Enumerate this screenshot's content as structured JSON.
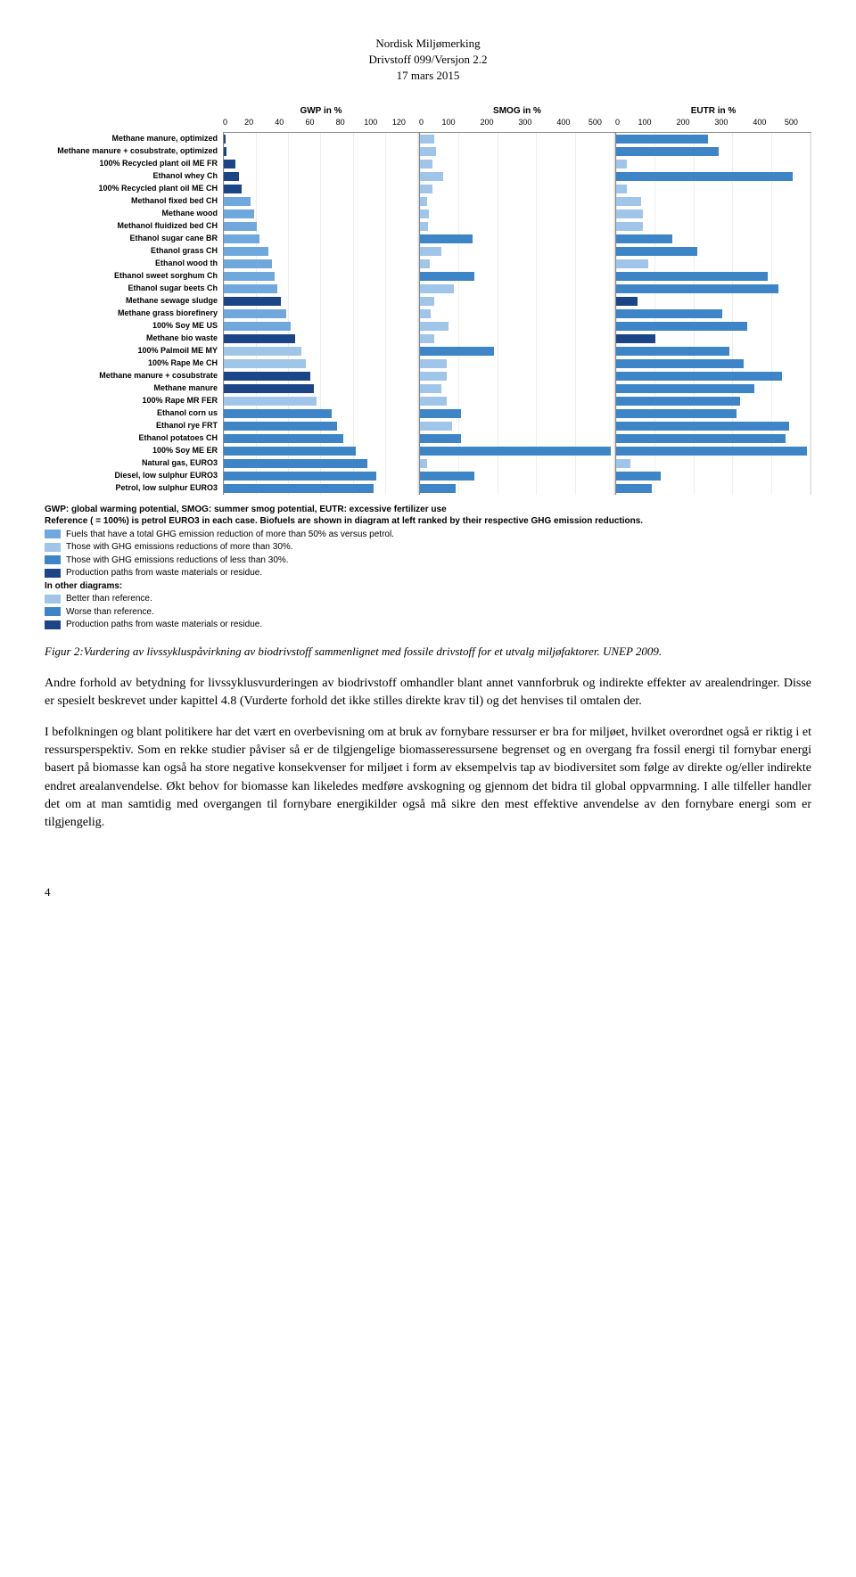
{
  "doc_header": {
    "line1": "Nordisk Miljømerking",
    "line2": "Drivstoff 099/Versjon 2.2",
    "line3": "17 mars 2015"
  },
  "chart": {
    "panels": [
      {
        "title": "GWP in %",
        "max": 130,
        "ticks": [
          "0",
          "20",
          "40",
          "60",
          "80",
          "100",
          "120"
        ]
      },
      {
        "title": "SMOG in %",
        "max": 550,
        "ticks": [
          "0",
          "100",
          "200",
          "300",
          "400",
          "500"
        ]
      },
      {
        "title": "EUTR in %",
        "max": 550,
        "ticks": [
          "0",
          "100",
          "200",
          "300",
          "400",
          "500"
        ]
      }
    ],
    "colors": {
      "c50": "#6fa8dc",
      "c30": "#9fc5e8",
      "c30b": "#3d85c6",
      "waste": "#1c4587",
      "better": "#9fc5e8",
      "worse": "#3d85c6"
    },
    "rows": [
      {
        "label": "Methane manure, optimized",
        "gwp": {
          "v": 1,
          "c": "waste"
        },
        "smog": {
          "v": 40,
          "c": "better"
        },
        "eutr": {
          "v": 260,
          "c": "worse"
        }
      },
      {
        "label": "Methane manure + cosubstrate, optimized",
        "gwp": {
          "v": 2,
          "c": "waste"
        },
        "smog": {
          "v": 45,
          "c": "better"
        },
        "eutr": {
          "v": 290,
          "c": "worse"
        }
      },
      {
        "label": "100% Recycled plant oil ME FR",
        "gwp": {
          "v": 8,
          "c": "waste"
        },
        "smog": {
          "v": 35,
          "c": "better"
        },
        "eutr": {
          "v": 30,
          "c": "better"
        }
      },
      {
        "label": "Ethanol whey Ch",
        "gwp": {
          "v": 10,
          "c": "waste"
        },
        "smog": {
          "v": 65,
          "c": "better"
        },
        "eutr": {
          "v": 500,
          "c": "worse"
        }
      },
      {
        "label": "100% Recycled plant oil ME CH",
        "gwp": {
          "v": 12,
          "c": "waste"
        },
        "smog": {
          "v": 35,
          "c": "better"
        },
        "eutr": {
          "v": 30,
          "c": "better"
        }
      },
      {
        "label": "Methanol fixed bed CH",
        "gwp": {
          "v": 18,
          "c": "c50"
        },
        "smog": {
          "v": 20,
          "c": "better"
        },
        "eutr": {
          "v": 70,
          "c": "better"
        }
      },
      {
        "label": "Methane wood",
        "gwp": {
          "v": 20,
          "c": "c50"
        },
        "smog": {
          "v": 25,
          "c": "better"
        },
        "eutr": {
          "v": 75,
          "c": "better"
        }
      },
      {
        "label": "Methanol fluidized bed CH",
        "gwp": {
          "v": 22,
          "c": "c50"
        },
        "smog": {
          "v": 22,
          "c": "better"
        },
        "eutr": {
          "v": 75,
          "c": "better"
        }
      },
      {
        "label": "Ethanol sugar cane BR",
        "gwp": {
          "v": 24,
          "c": "c50"
        },
        "smog": {
          "v": 150,
          "c": "worse"
        },
        "eutr": {
          "v": 160,
          "c": "worse"
        }
      },
      {
        "label": "Ethanol grass CH",
        "gwp": {
          "v": 30,
          "c": "c50"
        },
        "smog": {
          "v": 60,
          "c": "better"
        },
        "eutr": {
          "v": 230,
          "c": "worse"
        }
      },
      {
        "label": "Ethanol wood th",
        "gwp": {
          "v": 32,
          "c": "c50"
        },
        "smog": {
          "v": 28,
          "c": "better"
        },
        "eutr": {
          "v": 90,
          "c": "better"
        }
      },
      {
        "label": "Ethanol sweet sorghum Ch",
        "gwp": {
          "v": 34,
          "c": "c50"
        },
        "smog": {
          "v": 155,
          "c": "worse"
        },
        "eutr": {
          "v": 430,
          "c": "worse"
        }
      },
      {
        "label": "Ethanol sugar beets Ch",
        "gwp": {
          "v": 36,
          "c": "c50"
        },
        "smog": {
          "v": 95,
          "c": "better"
        },
        "eutr": {
          "v": 460,
          "c": "worse"
        }
      },
      {
        "label": "Methane sewage sludge",
        "gwp": {
          "v": 38,
          "c": "waste"
        },
        "smog": {
          "v": 40,
          "c": "better"
        },
        "eutr": {
          "v": 60,
          "c": "waste"
        }
      },
      {
        "label": "Methane grass biorefinery",
        "gwp": {
          "v": 42,
          "c": "c50"
        },
        "smog": {
          "v": 30,
          "c": "better"
        },
        "eutr": {
          "v": 300,
          "c": "worse"
        }
      },
      {
        "label": "100% Soy ME US",
        "gwp": {
          "v": 45,
          "c": "c50"
        },
        "smog": {
          "v": 80,
          "c": "better"
        },
        "eutr": {
          "v": 370,
          "c": "worse"
        }
      },
      {
        "label": "Methane bio waste",
        "gwp": {
          "v": 48,
          "c": "waste"
        },
        "smog": {
          "v": 40,
          "c": "better"
        },
        "eutr": {
          "v": 110,
          "c": "waste"
        }
      },
      {
        "label": "100% Palmoil ME MY",
        "gwp": {
          "v": 52,
          "c": "c30"
        },
        "smog": {
          "v": 210,
          "c": "worse"
        },
        "eutr": {
          "v": 320,
          "c": "worse"
        }
      },
      {
        "label": "100% Rape Me CH",
        "gwp": {
          "v": 55,
          "c": "c30"
        },
        "smog": {
          "v": 75,
          "c": "better"
        },
        "eutr": {
          "v": 360,
          "c": "worse"
        }
      },
      {
        "label": "Methane manure + cosubstrate",
        "gwp": {
          "v": 58,
          "c": "waste"
        },
        "smog": {
          "v": 75,
          "c": "better"
        },
        "eutr": {
          "v": 470,
          "c": "worse"
        }
      },
      {
        "label": "Methane manure",
        "gwp": {
          "v": 60,
          "c": "waste"
        },
        "smog": {
          "v": 60,
          "c": "better"
        },
        "eutr": {
          "v": 390,
          "c": "worse"
        }
      },
      {
        "label": "100% Rape MR FER",
        "gwp": {
          "v": 62,
          "c": "c30"
        },
        "smog": {
          "v": 75,
          "c": "better"
        },
        "eutr": {
          "v": 350,
          "c": "worse"
        }
      },
      {
        "label": "Ethanol corn us",
        "gwp": {
          "v": 72,
          "c": "c30b"
        },
        "smog": {
          "v": 115,
          "c": "worse"
        },
        "eutr": {
          "v": 340,
          "c": "worse"
        }
      },
      {
        "label": "Ethanol rye FRT",
        "gwp": {
          "v": 76,
          "c": "c30b"
        },
        "smog": {
          "v": 90,
          "c": "better"
        },
        "eutr": {
          "v": 490,
          "c": "worse"
        }
      },
      {
        "label": "Ethanol potatoes CH",
        "gwp": {
          "v": 80,
          "c": "c30b"
        },
        "smog": {
          "v": 115,
          "c": "worse"
        },
        "eutr": {
          "v": 480,
          "c": "worse"
        }
      },
      {
        "label": "100% Soy ME ER",
        "gwp": {
          "v": 88,
          "c": "c30b"
        },
        "smog": {
          "v": 540,
          "c": "worse"
        },
        "eutr": {
          "v": 540,
          "c": "worse"
        }
      },
      {
        "label": "Natural gas, EURO3",
        "gwp": {
          "v": 96,
          "c": "c30b"
        },
        "smog": {
          "v": 20,
          "c": "better"
        },
        "eutr": {
          "v": 40,
          "c": "better"
        }
      },
      {
        "label": "Diesel, low sulphur EURO3",
        "gwp": {
          "v": 102,
          "c": "c30b"
        },
        "smog": {
          "v": 155,
          "c": "worse"
        },
        "eutr": {
          "v": 125,
          "c": "worse"
        }
      },
      {
        "label": "Petrol, low sulphur EURO3",
        "gwp": {
          "v": 100,
          "c": "c30b"
        },
        "smog": {
          "v": 100,
          "c": "worse"
        },
        "eutr": {
          "v": 100,
          "c": "worse"
        }
      }
    ],
    "legend_intro1": "GWP: global warming potential, SMOG: summer smog potential, EUTR: excessive fertilizer use",
    "legend_intro2": "Reference ( = 100%) is petrol EURO3 in each case. Biofuels are shown in diagram at left ranked by their respective GHG emission reductions.",
    "legend_items_a": [
      {
        "color": "c50",
        "text": "Fuels that have a total GHG emission reduction of more than 50% as versus petrol."
      },
      {
        "color": "c30",
        "text": "Those with GHG emissions reductions of more than 30%."
      },
      {
        "color": "c30b",
        "text": "Those with GHG emissions reductions of less than 30%."
      },
      {
        "color": "waste",
        "text": "Production paths from waste materials or residue."
      }
    ],
    "legend_other": "In other diagrams:",
    "legend_items_b": [
      {
        "color": "better",
        "text": "Better than reference."
      },
      {
        "color": "worse",
        "text": "Worse than reference."
      },
      {
        "color": "waste",
        "text": "Production paths from waste materials or residue."
      }
    ]
  },
  "caption": "Figur 2:Vurdering av livssykluspåvirkning av biodrivstoff sammenlignet med fossile drivstoff for et utvalg miljøfaktorer. UNEP 2009.",
  "para1": "Andre forhold av betydning for livssyklusvurderingen av biodrivstoff omhandler blant annet vannforbruk og indirekte effekter av arealendringer. Disse er spesielt beskrevet under kapittel 4.8 (Vurderte forhold det ikke stilles direkte krav til) og det henvises til omtalen der.",
  "para2": "I befolkningen og blant politikere har det vært en overbevisning om at bruk av fornybare ressurser er bra for miljøet, hvilket overordnet også er riktig i et ressursperspektiv. Som en rekke studier påviser så er de tilgjengelige biomasseressursene begrenset og en overgang fra fossil energi til fornybar energi basert på biomasse kan også ha store negative konsekvenser for miljøet i form av eksempelvis tap av biodiversitet som følge av direkte og/eller indirekte endret arealanvendelse. Økt behov for biomasse kan likeledes medføre avskogning og gjennom det bidra til global oppvarmning. I alle tilfeller handler det om at man samtidig med overgangen til fornybare energikilder også må sikre den mest effektive anvendelse av den fornybare energi som er tilgjengelig.",
  "page_number": "4"
}
